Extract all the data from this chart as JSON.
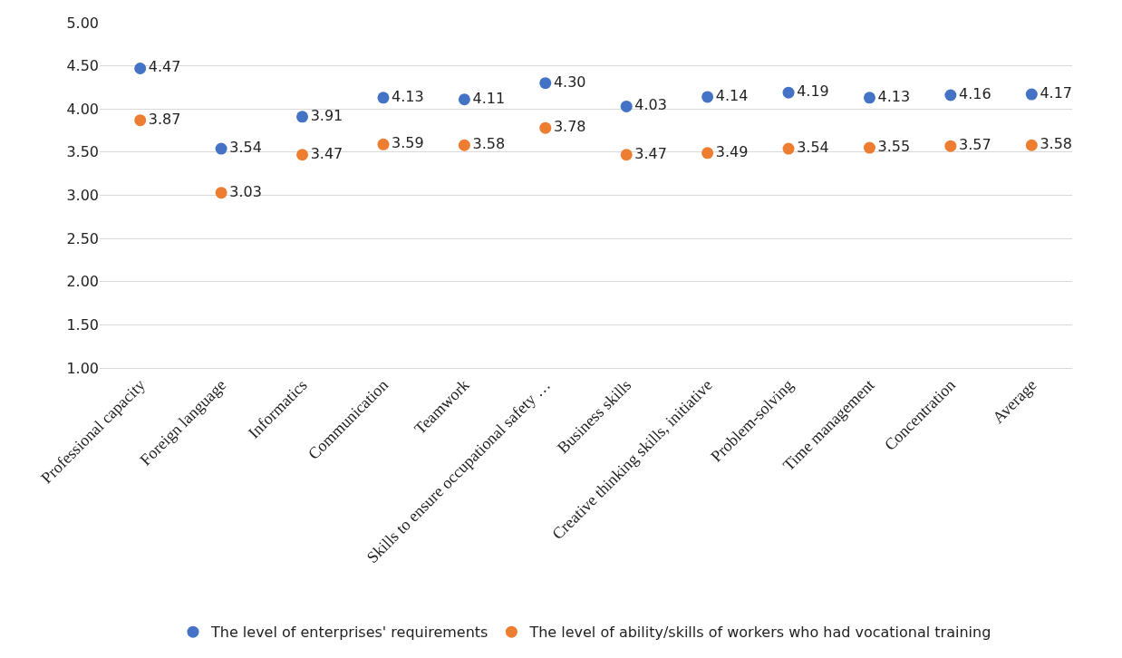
{
  "chart_data": {
    "type": "scatter",
    "categories": [
      "Professional capacity",
      "Foreign language",
      "Informatics",
      "Communication",
      "Teamwork",
      "Skills to ensure occupational safety …",
      "Business skills",
      "Creative thinking skills, initiative",
      "Problem-solving",
      "Time management",
      "Concentration",
      "Average"
    ],
    "series": [
      {
        "name": "The level of enterprises' requirements",
        "color": "#4472c4",
        "values": [
          4.47,
          3.54,
          3.91,
          4.13,
          4.11,
          4.3,
          4.03,
          4.14,
          4.19,
          4.13,
          4.16,
          4.17
        ],
        "value_labels": [
          "4.47",
          "3.54",
          "3.91",
          "4.13",
          "4.11",
          "4.30",
          "4.03",
          "4.14",
          "4.19",
          "4.13",
          "4.16",
          "4.17"
        ]
      },
      {
        "name": "The level of ability/skills of workers who had vocational training",
        "color": "#ed7d31",
        "values": [
          3.87,
          3.03,
          3.47,
          3.59,
          3.58,
          3.78,
          3.47,
          3.49,
          3.54,
          3.55,
          3.57,
          3.58
        ],
        "value_labels": [
          "3.87",
          "3.03",
          "3.47",
          "3.59",
          "3.58",
          "3.78",
          "3.47",
          "3.49",
          "3.54",
          "3.55",
          "3.57",
          "3.58"
        ]
      }
    ],
    "ylim": [
      1,
      5
    ],
    "yticks": [
      {
        "value": 1,
        "label": "1.00"
      },
      {
        "value": 1.5,
        "label": "1.50"
      },
      {
        "value": 2,
        "label": "2.00"
      },
      {
        "value": 2.5,
        "label": "2.50"
      },
      {
        "value": 3,
        "label": "3.00"
      },
      {
        "value": 3.5,
        "label": "3.50"
      },
      {
        "value": 4,
        "label": "4.00"
      },
      {
        "value": 4.5,
        "label": "4.50"
      },
      {
        "value": 5,
        "label": "5.00"
      }
    ],
    "grid": "y",
    "legend": "bottom",
    "marker": "circle"
  }
}
